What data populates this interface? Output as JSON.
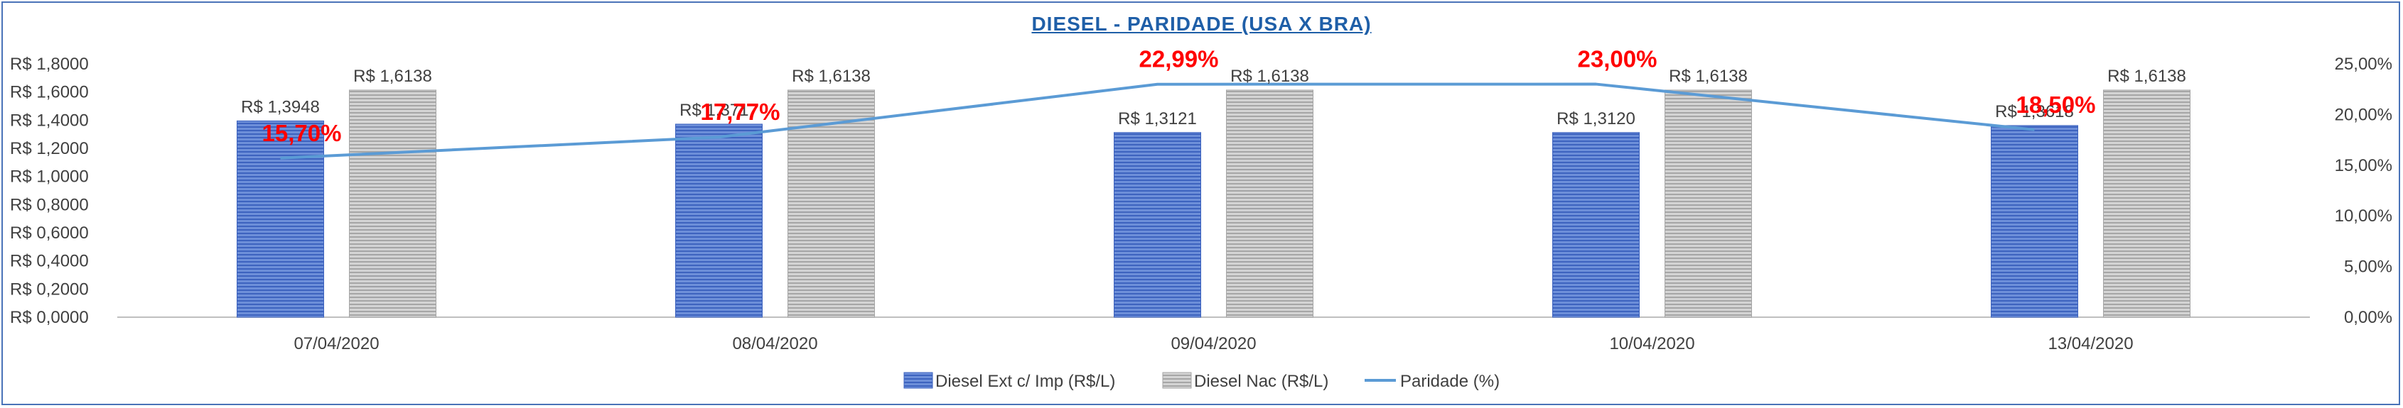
{
  "chart_data": {
    "type": "bar",
    "title": "DIESEL - PARIDADE (USA X BRA)",
    "categories": [
      "07/04/2020",
      "08/04/2020",
      "09/04/2020",
      "10/04/2020",
      "13/04/2020"
    ],
    "series": [
      {
        "name": "Diesel Ext c/ Imp (R$/L)",
        "type": "bar",
        "axis": "left",
        "values": [
          1.3948,
          1.3717,
          1.3121,
          1.312,
          1.3618
        ],
        "labels": [
          "R$ 1,3948",
          "R$ 1,3717",
          "R$ 1,3121",
          "R$ 1,3120",
          "R$ 1,3618"
        ],
        "color": "#4f76cf"
      },
      {
        "name": "Diesel Nac (R$/L)",
        "type": "bar",
        "axis": "left",
        "values": [
          1.6138,
          1.6138,
          1.6138,
          1.6138,
          1.6138
        ],
        "labels": [
          "R$ 1,6138",
          "R$ 1,6138",
          "R$ 1,6138",
          "R$ 1,6138",
          "R$ 1,6138"
        ],
        "color": "#b3b3b3"
      },
      {
        "name": "Paridade (%)",
        "type": "line",
        "axis": "right",
        "values": [
          15.7,
          17.77,
          22.99,
          23.0,
          18.5
        ],
        "labels": [
          "15,70%",
          "17,77%",
          "22,99%",
          "23,00%",
          "18,50%"
        ],
        "color": "#5b9bd5",
        "label_color": "#ff0000"
      }
    ],
    "y_left": {
      "ylim": [
        0,
        1.8
      ],
      "ticks": [
        "R$ 0,0000",
        "R$ 0,2000",
        "R$ 0,4000",
        "R$ 0,6000",
        "R$ 0,8000",
        "R$ 1,0000",
        "R$ 1,2000",
        "R$ 1,4000",
        "R$ 1,6000",
        "R$ 1,8000"
      ]
    },
    "y_right": {
      "ylim": [
        0,
        25
      ],
      "ticks": [
        "0,00%",
        "5,00%",
        "10,00%",
        "15,00%",
        "20,00%",
        "25,00%"
      ]
    },
    "grid": false,
    "legend_position": "bottom"
  }
}
